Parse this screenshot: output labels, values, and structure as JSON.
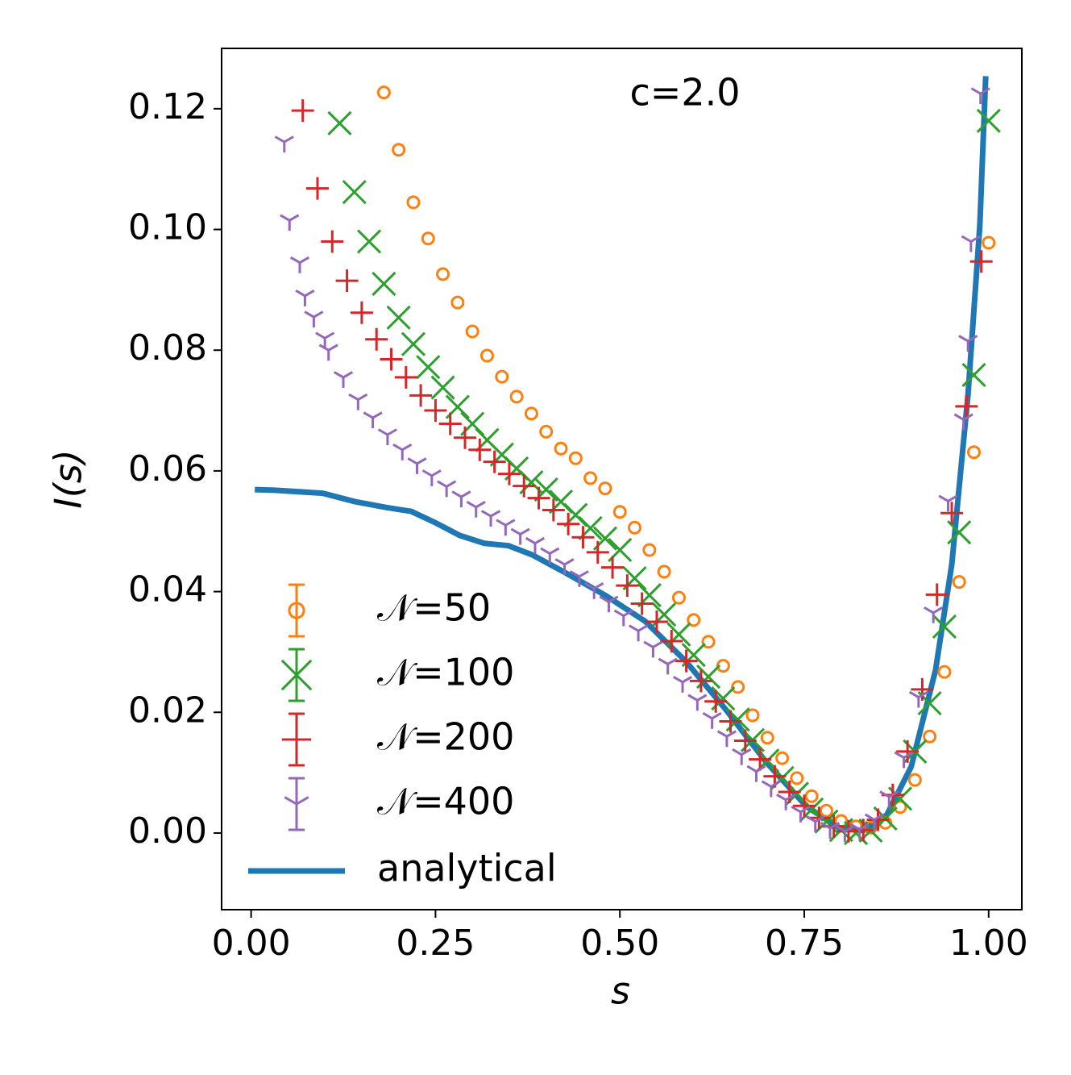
{
  "chart_data": {
    "type": "scatter",
    "annotation": "c=2.0",
    "xlabel": "s",
    "ylabel": "I(s)",
    "xlim": [
      -0.04,
      1.045
    ],
    "ylim": [
      -0.0127,
      0.13
    ],
    "xticks": [
      {
        "value": 0,
        "label": "0.00"
      },
      {
        "value": 0.25,
        "label": "0.25"
      },
      {
        "value": 0.5,
        "label": "0.50"
      },
      {
        "value": 0.75,
        "label": "0.75"
      },
      {
        "value": 1,
        "label": "1.00"
      }
    ],
    "yticks": [
      {
        "value": 0,
        "label": "0.00"
      },
      {
        "value": 0.02,
        "label": "0.02"
      },
      {
        "value": 0.04,
        "label": "0.04"
      },
      {
        "value": 0.06,
        "label": "0.06"
      },
      {
        "value": 0.08,
        "label": "0.08"
      },
      {
        "value": 0.1,
        "label": "0.10"
      },
      {
        "value": 0.12,
        "label": "0.12"
      }
    ],
    "legend": "lower left",
    "series": [
      {
        "name": "𝒩=50",
        "color": "#ff7f0e",
        "marker": "circle",
        "x": [
          0.18,
          0.2,
          0.22,
          0.24,
          0.26,
          0.28,
          0.3,
          0.32,
          0.34,
          0.36,
          0.38,
          0.4,
          0.42,
          0.44,
          0.46,
          0.48,
          0.5,
          0.52,
          0.54,
          0.56,
          0.58,
          0.6,
          0.62,
          0.64,
          0.66,
          0.68,
          0.7,
          0.72,
          0.74,
          0.76,
          0.78,
          0.8,
          0.82,
          0.84,
          0.86,
          0.88,
          0.9,
          0.92,
          0.94,
          0.96,
          0.98,
          1.0
        ],
        "values": [
          0.1227,
          0.1132,
          0.1045,
          0.0985,
          0.0926,
          0.0879,
          0.0831,
          0.0791,
          0.0756,
          0.0723,
          0.0695,
          0.0665,
          0.0637,
          0.0621,
          0.0588,
          0.0571,
          0.0532,
          0.0506,
          0.0469,
          0.0433,
          0.039,
          0.0353,
          0.0317,
          0.0277,
          0.0242,
          0.0195,
          0.0158,
          0.0124,
          0.0091,
          0.0061,
          0.0037,
          0.002,
          0.0011,
          0.0009,
          0.0017,
          0.0043,
          0.0088,
          0.016,
          0.0267,
          0.0416,
          0.0631,
          0.0978
        ]
      },
      {
        "name": "𝒩=100",
        "color": "#2ca02c",
        "marker": "x",
        "x": [
          0.12,
          0.14,
          0.16,
          0.18,
          0.2,
          0.22,
          0.24,
          0.26,
          0.28,
          0.3,
          0.32,
          0.34,
          0.36,
          0.38,
          0.4,
          0.42,
          0.44,
          0.46,
          0.48,
          0.5,
          0.52,
          0.54,
          0.56,
          0.58,
          0.6,
          0.62,
          0.64,
          0.66,
          0.68,
          0.7,
          0.72,
          0.74,
          0.76,
          0.78,
          0.8,
          0.82,
          0.84,
          0.86,
          0.88,
          0.9,
          0.92,
          0.94,
          0.96,
          0.98,
          1.0
        ],
        "values": [
          0.1176,
          0.1062,
          0.098,
          0.091,
          0.0854,
          0.081,
          0.0772,
          0.0738,
          0.0706,
          0.0678,
          0.0651,
          0.0627,
          0.0604,
          0.0581,
          0.0569,
          0.0549,
          0.0527,
          0.0505,
          0.0488,
          0.0469,
          0.0422,
          0.0394,
          0.0362,
          0.0329,
          0.0295,
          0.0259,
          0.0223,
          0.0188,
          0.0154,
          0.012,
          0.0091,
          0.0065,
          0.0039,
          0.0019,
          0.0005,
          0.0,
          0.0004,
          0.0024,
          0.0057,
          0.0135,
          0.0215,
          0.0342,
          0.0498,
          0.0759,
          0.118
        ]
      },
      {
        "name": "𝒩=200",
        "color": "#d62728",
        "marker": "plus",
        "x": [
          0.07,
          0.09,
          0.11,
          0.13,
          0.15,
          0.17,
          0.19,
          0.21,
          0.23,
          0.25,
          0.27,
          0.29,
          0.31,
          0.33,
          0.35,
          0.37,
          0.39,
          0.41,
          0.43,
          0.45,
          0.47,
          0.49,
          0.51,
          0.53,
          0.55,
          0.57,
          0.59,
          0.61,
          0.63,
          0.65,
          0.67,
          0.69,
          0.71,
          0.73,
          0.75,
          0.77,
          0.79,
          0.81,
          0.83,
          0.85,
          0.87,
          0.89,
          0.91,
          0.93,
          0.95,
          0.97,
          0.99
        ],
        "values": [
          0.1197,
          0.1068,
          0.098,
          0.0915,
          0.0862,
          0.0818,
          0.0785,
          0.0755,
          0.0725,
          0.07,
          0.0678,
          0.0655,
          0.0635,
          0.0615,
          0.0595,
          0.0575,
          0.0555,
          0.0535,
          0.0512,
          0.049,
          0.0465,
          0.044,
          0.041,
          0.038,
          0.035,
          0.0318,
          0.0285,
          0.0252,
          0.0218,
          0.0185,
          0.0153,
          0.0122,
          0.0094,
          0.0068,
          0.0045,
          0.0025,
          0.0011,
          0.0003,
          0.0005,
          0.0022,
          0.0063,
          0.0135,
          0.0238,
          0.0395,
          0.053,
          0.0707,
          0.0947
        ]
      },
      {
        "name": "𝒩=400",
        "color": "#9467bd",
        "marker": "tri_down",
        "x": [
          0.045,
          0.052,
          0.066,
          0.073,
          0.085,
          0.1,
          0.105,
          0.125,
          0.145,
          0.165,
          0.185,
          0.205,
          0.225,
          0.245,
          0.265,
          0.285,
          0.305,
          0.325,
          0.345,
          0.365,
          0.385,
          0.405,
          0.425,
          0.445,
          0.465,
          0.485,
          0.505,
          0.525,
          0.545,
          0.565,
          0.585,
          0.605,
          0.625,
          0.645,
          0.665,
          0.685,
          0.705,
          0.725,
          0.745,
          0.765,
          0.785,
          0.805,
          0.825,
          0.845,
          0.865,
          0.885,
          0.905,
          0.925,
          0.945,
          0.966,
          0.972,
          0.976,
          0.989
        ],
        "values": [
          0.1145,
          0.1015,
          0.0945,
          0.089,
          0.0855,
          0.082,
          0.08,
          0.0755,
          0.0718,
          0.0688,
          0.066,
          0.0635,
          0.0612,
          0.0592,
          0.0574,
          0.0557,
          0.054,
          0.0525,
          0.051,
          0.0495,
          0.048,
          0.0463,
          0.0445,
          0.0425,
          0.0405,
          0.0383,
          0.036,
          0.0335,
          0.0308,
          0.028,
          0.025,
          0.022,
          0.019,
          0.016,
          0.013,
          0.0102,
          0.0077,
          0.0055,
          0.0035,
          0.0019,
          0.0008,
          0.0003,
          0.0006,
          0.0022,
          0.006,
          0.0125,
          0.0225,
          0.0365,
          0.055,
          0.0685,
          0.0815,
          0.098,
          0.1225
        ]
      },
      {
        "name": "analytical",
        "color": "#1f77b4",
        "marker": "line",
        "x": [
          0.005,
          0.032,
          0.097,
          0.141,
          0.185,
          0.217,
          0.25,
          0.283,
          0.316,
          0.349,
          0.381,
          0.425,
          0.48,
          0.534,
          0.589,
          0.644,
          0.698,
          0.753,
          0.797,
          0.83,
          0.862,
          0.895,
          0.928,
          0.95,
          0.972,
          0.988,
          0.996
        ],
        "values": [
          0.0569,
          0.0568,
          0.0563,
          0.0549,
          0.0539,
          0.0533,
          0.0514,
          0.0493,
          0.048,
          0.0476,
          0.0461,
          0.0432,
          0.0394,
          0.0351,
          0.0285,
          0.0204,
          0.0118,
          0.0044,
          0.0009,
          0.0004,
          0.003,
          0.011,
          0.027,
          0.0445,
          0.0726,
          0.1006,
          0.1254
        ]
      }
    ]
  }
}
